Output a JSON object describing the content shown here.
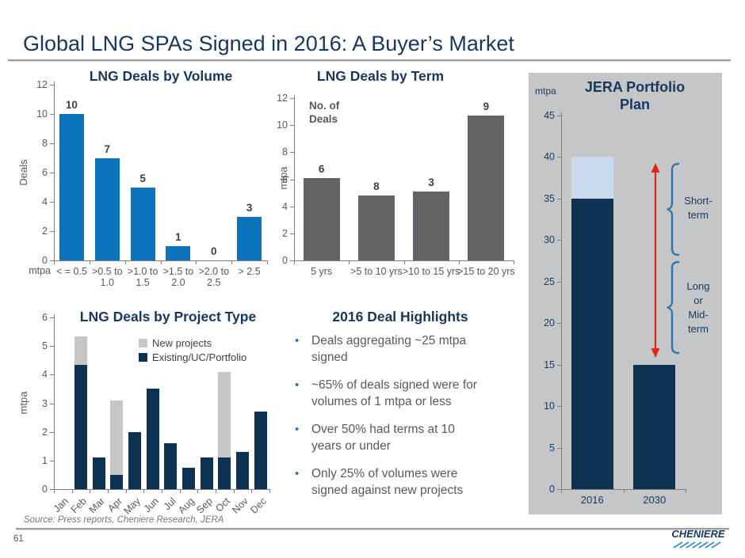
{
  "slide": {
    "title": "Global LNG SPAs Signed in 2016: A Buyer’s Market",
    "page_number": "61",
    "source_note": "Source: Press reports, Cheniere Research, JERA",
    "logo": "CHENIERE"
  },
  "colors": {
    "title_navy": "#17375D",
    "bar_blue": "#0B74BA",
    "bar_gray": "#626366",
    "bar_navy": "#0F3152",
    "bar_lightblue": "#C9DAEE",
    "legend_gray": "#C6C6C6",
    "panel_bg": "#C5C6C8",
    "arrow_red": "#E2231A",
    "brace_blue": "#2E74B5",
    "text_gray": "#595959",
    "bullet_blue": "#2E75B6"
  },
  "chart_data": [
    {
      "id": "lng_deals_by_volume",
      "type": "bar",
      "title": "LNG Deals by Volume",
      "ylabel": "Deals",
      "x_unit": "mtpa",
      "ylim": [
        0,
        12
      ],
      "ytick_step": 2,
      "categories": [
        "< = 0.5",
        ">0.5 to\n1.0",
        ">1.0 to\n1.5",
        ">1.5 to\n2.0",
        ">2.0 to\n2.5",
        "> 2.5"
      ],
      "values": [
        10,
        7,
        5,
        1,
        0,
        3
      ],
      "data_labels": [
        "10",
        "7",
        "5",
        "1",
        "0",
        "3"
      ]
    },
    {
      "id": "lng_deals_by_term",
      "type": "bar",
      "title": "LNG Deals by Term",
      "ylabel": "mtpa",
      "annotation": "No. of\nDeals",
      "ylim": [
        0,
        12
      ],
      "ytick_step": 2,
      "categories": [
        "5 yrs",
        ">5 to 10 yrs",
        ">10 to 15 yrs",
        ">15 to 20 yrs"
      ],
      "values": [
        6.1,
        4.8,
        5.1,
        10.7
      ],
      "data_labels": [
        "6",
        "8",
        "3",
        "9"
      ]
    },
    {
      "id": "lng_deals_by_project_type",
      "type": "stacked-bar",
      "title": "LNG Deals by Project Type",
      "ylabel": "mtpa",
      "ylim": [
        0,
        6
      ],
      "ytick_step": 1,
      "categories": [
        "Jan",
        "Feb",
        "Mar",
        "Apr",
        "May",
        "Jun",
        "Jul",
        "Aug",
        "Sep",
        "Oct",
        "Nov",
        "Dec"
      ],
      "series": [
        {
          "name": "Existing/UC/Portfolio",
          "color": "#0F3152",
          "values": [
            0,
            4.35,
            1.1,
            0.5,
            2.0,
            3.5,
            1.6,
            0.75,
            1.1,
            1.1,
            1.3,
            2.7
          ]
        },
        {
          "name": "New projects",
          "color": "#C6C6C6",
          "values": [
            0,
            1.0,
            0,
            2.6,
            0,
            0,
            0,
            0,
            0,
            3.0,
            0,
            0
          ]
        }
      ]
    },
    {
      "id": "jera_portfolio_plan",
      "type": "stacked-bar",
      "title": "JERA Portfolio\nPlan",
      "unit_label": "mtpa",
      "ylim": [
        0,
        45
      ],
      "ytick_step": 5,
      "categories": [
        "2016",
        "2030"
      ],
      "series": [
        {
          "name": "LT",
          "color": "#0F3152",
          "values": [
            35,
            15
          ]
        },
        {
          "name": "ST",
          "color": "#C9DAEE",
          "values": [
            5,
            0
          ]
        }
      ],
      "annotations": {
        "short_term": "Short-\nterm",
        "long_or_mid_term": "Long\nor\nMid-\nterm"
      }
    }
  ],
  "highlights": {
    "title": "2016 Deal Highlights",
    "bullets": [
      "Deals aggregating ~25 mtpa\nsigned",
      "~65% of deals signed were for\nvolumes of 1 mtpa or less",
      "Over 50% had terms at 10\nyears or under",
      "Only 25% of volumes were\nsigned against new projects"
    ]
  }
}
